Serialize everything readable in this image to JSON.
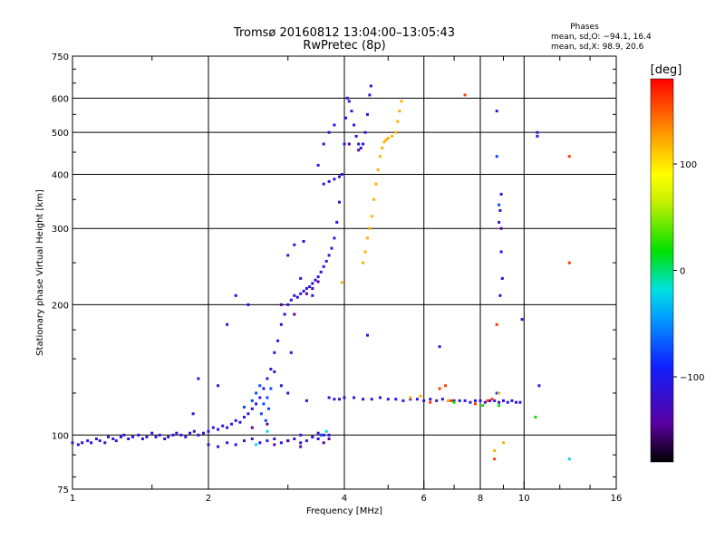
{
  "chart_data": {
    "type": "scatter",
    "title": "Tromsø 20160812 13:04:00–13:05:43",
    "subtitle": "RwPretec (8p)",
    "xlabel": "Frequency [MHz]",
    "ylabel": "Stationary phase Virtual Height [km]",
    "x_scale": "log",
    "y_scale": "log",
    "xlim": [
      1,
      16
    ],
    "ylim": [
      75,
      750
    ],
    "x_ticks": [
      1,
      2,
      4,
      6,
      8,
      10,
      16
    ],
    "x_tick_labels": [
      "1",
      "2",
      "4",
      "6",
      "8",
      "10",
      "16"
    ],
    "y_ticks": [
      75,
      100,
      200,
      300,
      400,
      500,
      600,
      750
    ],
    "y_tick_labels": [
      "75",
      "100",
      "200",
      "300",
      "400",
      "500",
      "600",
      "750"
    ],
    "grid": true,
    "stats": {
      "heading": "Phases",
      "line_o": "mean, sd,O: −94.1, 16.4",
      "line_x": "mean, sd,X:  98.9, 20.6"
    },
    "colorbar": {
      "label": "[deg]",
      "min": -180,
      "max": 180,
      "ticks": [
        100,
        0,
        -100
      ],
      "tick_labels": [
        "100",
        "0",
        "−100"
      ]
    },
    "series": [
      {
        "color_value": -110,
        "points": [
          [
            1.0,
            96
          ],
          [
            1.03,
            95
          ],
          [
            1.05,
            96
          ],
          [
            1.08,
            97
          ],
          [
            1.1,
            96
          ],
          [
            1.13,
            98
          ],
          [
            1.15,
            97
          ],
          [
            1.18,
            96
          ],
          [
            1.2,
            99
          ],
          [
            1.23,
            98
          ],
          [
            1.25,
            97
          ],
          [
            1.28,
            99
          ],
          [
            1.3,
            100
          ],
          [
            1.33,
            98
          ],
          [
            1.36,
            99
          ],
          [
            1.4,
            100
          ],
          [
            1.43,
            98
          ],
          [
            1.46,
            99
          ],
          [
            1.5,
            101
          ],
          [
            1.53,
            99
          ],
          [
            1.56,
            100
          ],
          [
            1.6,
            98
          ],
          [
            1.63,
            99
          ],
          [
            1.67,
            100
          ],
          [
            1.7,
            101
          ],
          [
            1.74,
            100
          ],
          [
            1.78,
            99
          ],
          [
            1.82,
            101
          ],
          [
            1.86,
            102
          ],
          [
            1.9,
            100
          ],
          [
            1.95,
            101
          ],
          [
            2.0,
            102
          ],
          [
            2.05,
            104
          ],
          [
            2.1,
            103
          ],
          [
            2.15,
            105
          ],
          [
            2.2,
            104
          ],
          [
            2.25,
            106
          ],
          [
            2.3,
            108
          ],
          [
            2.35,
            107
          ],
          [
            2.4,
            110
          ],
          [
            2.45,
            112
          ],
          [
            2.5,
            115
          ],
          [
            2.55,
            118
          ],
          [
            2.6,
            122
          ],
          [
            2.65,
            128
          ],
          [
            2.7,
            135
          ],
          [
            2.75,
            142
          ],
          [
            2.8,
            155
          ],
          [
            2.85,
            165
          ],
          [
            2.9,
            180
          ],
          [
            2.95,
            190
          ],
          [
            3.0,
            200
          ],
          [
            3.05,
            205
          ],
          [
            3.1,
            210
          ],
          [
            3.15,
            208
          ],
          [
            3.2,
            212
          ],
          [
            3.25,
            215
          ],
          [
            3.3,
            218
          ],
          [
            3.35,
            220
          ],
          [
            3.4,
            224
          ],
          [
            3.45,
            228
          ],
          [
            3.5,
            232
          ],
          [
            3.55,
            238
          ],
          [
            3.6,
            245
          ],
          [
            3.65,
            252
          ],
          [
            3.7,
            260
          ],
          [
            3.75,
            270
          ],
          [
            3.8,
            285
          ],
          [
            3.85,
            310
          ],
          [
            3.9,
            345
          ],
          [
            3.95,
            400
          ],
          [
            4.0,
            470
          ],
          [
            4.03,
            540
          ],
          [
            4.06,
            600
          ],
          [
            4.1,
            590
          ],
          [
            4.15,
            560
          ],
          [
            4.2,
            520
          ],
          [
            4.25,
            490
          ],
          [
            4.3,
            470
          ],
          [
            4.35,
            460
          ],
          [
            4.4,
            470
          ],
          [
            4.45,
            500
          ],
          [
            4.5,
            550
          ],
          [
            4.55,
            610
          ],
          [
            4.58,
            640
          ],
          [
            2.0,
            95
          ],
          [
            2.1,
            94
          ],
          [
            2.2,
            96
          ],
          [
            2.3,
            95
          ],
          [
            2.4,
            97
          ],
          [
            2.5,
            98
          ],
          [
            2.6,
            96
          ],
          [
            2.7,
            97
          ],
          [
            2.8,
            98
          ],
          [
            2.9,
            96
          ],
          [
            3.0,
            97
          ],
          [
            3.1,
            98
          ],
          [
            3.2,
            96
          ],
          [
            3.3,
            97
          ],
          [
            3.4,
            99
          ],
          [
            3.5,
            98
          ],
          [
            3.6,
            100
          ],
          [
            3.4,
            210
          ],
          [
            3.2,
            230
          ],
          [
            3.0,
            260
          ],
          [
            3.1,
            275
          ],
          [
            3.25,
            280
          ],
          [
            3.5,
            420
          ],
          [
            3.6,
            470
          ],
          [
            3.7,
            500
          ],
          [
            3.8,
            520
          ],
          [
            3.6,
            380
          ],
          [
            3.7,
            385
          ],
          [
            3.8,
            390
          ],
          [
            3.9,
            395
          ],
          [
            2.8,
            140
          ],
          [
            2.9,
            130
          ],
          [
            3.0,
            125
          ],
          [
            3.3,
            120
          ],
          [
            3.7,
            122
          ],
          [
            3.8,
            121
          ],
          [
            3.9,
            121
          ],
          [
            4.0,
            122
          ],
          [
            4.2,
            122
          ],
          [
            4.4,
            121
          ],
          [
            4.6,
            121
          ],
          [
            4.8,
            122
          ],
          [
            5.0,
            121
          ],
          [
            5.2,
            121
          ],
          [
            5.4,
            120
          ],
          [
            5.6,
            121
          ],
          [
            5.8,
            121
          ],
          [
            6.0,
            120
          ],
          [
            6.2,
            121
          ],
          [
            6.4,
            120
          ],
          [
            6.6,
            121
          ],
          [
            6.8,
            120
          ],
          [
            7.0,
            120
          ],
          [
            7.2,
            120
          ],
          [
            7.4,
            120
          ],
          [
            7.6,
            119
          ],
          [
            7.8,
            120
          ],
          [
            8.0,
            120
          ],
          [
            8.2,
            119
          ],
          [
            8.4,
            120
          ],
          [
            8.6,
            120
          ],
          [
            8.8,
            119
          ],
          [
            9.0,
            120
          ],
          [
            9.2,
            119
          ],
          [
            9.4,
            120
          ],
          [
            9.6,
            119
          ],
          [
            9.8,
            119
          ],
          [
            8.7,
            560
          ],
          [
            8.9,
            360
          ],
          [
            8.85,
            330
          ],
          [
            8.8,
            310
          ],
          [
            8.9,
            265
          ],
          [
            8.95,
            230
          ],
          [
            8.85,
            210
          ],
          [
            9.9,
            185
          ],
          [
            10.7,
            500
          ],
          [
            10.7,
            490
          ],
          [
            3.2,
            100
          ],
          [
            3.4,
            99
          ],
          [
            3.5,
            101
          ],
          [
            3.7,
            100
          ],
          [
            2.2,
            180
          ],
          [
            1.9,
            135
          ],
          [
            4.5,
            170
          ],
          [
            6.5,
            160
          ],
          [
            10.8,
            130
          ],
          [
            2.3,
            210
          ],
          [
            2.1,
            130
          ],
          [
            1.85,
            112
          ],
          [
            2.45,
            200
          ],
          [
            3.05,
            155
          ]
        ]
      },
      {
        "color_value": -75,
        "points": [
          [
            2.5,
            120
          ],
          [
            2.55,
            125
          ],
          [
            2.6,
            130
          ],
          [
            2.65,
            118
          ],
          [
            2.7,
            122
          ],
          [
            2.75,
            128
          ],
          [
            2.62,
            112
          ],
          [
            2.68,
            108
          ],
          [
            2.72,
            115
          ],
          [
            8.7,
            440
          ],
          [
            8.8,
            340
          ],
          [
            8.7,
            125
          ],
          [
            3.55,
            100
          ],
          [
            2.4,
            116
          ]
        ]
      },
      {
        "color_value": -145,
        "points": [
          [
            2.8,
            95
          ],
          [
            3.0,
            97
          ],
          [
            3.2,
            94
          ],
          [
            3.3,
            212
          ],
          [
            3.4,
            218
          ],
          [
            3.5,
            226
          ],
          [
            2.9,
            200
          ],
          [
            3.1,
            190
          ],
          [
            3.6,
            96
          ],
          [
            3.7,
            98
          ],
          [
            2.5,
            104
          ],
          [
            2.7,
            106
          ],
          [
            4.1,
            470
          ],
          [
            4.3,
            455
          ],
          [
            8.9,
            300
          ]
        ]
      },
      {
        "color_value": 120,
        "points": [
          [
            4.4,
            250
          ],
          [
            4.45,
            265
          ],
          [
            4.5,
            285
          ],
          [
            4.55,
            300
          ],
          [
            4.6,
            320
          ],
          [
            4.65,
            350
          ],
          [
            4.7,
            380
          ],
          [
            4.75,
            410
          ],
          [
            4.8,
            440
          ],
          [
            4.85,
            460
          ],
          [
            4.9,
            475
          ],
          [
            4.95,
            480
          ],
          [
            5.0,
            485
          ],
          [
            5.1,
            490
          ],
          [
            5.2,
            500
          ],
          [
            5.25,
            530
          ],
          [
            5.3,
            560
          ],
          [
            5.35,
            590
          ],
          [
            3.95,
            225
          ],
          [
            6.8,
            120
          ],
          [
            5.6,
            122
          ],
          [
            5.9,
            123
          ],
          [
            8.6,
            92
          ],
          [
            9.0,
            96
          ],
          [
            8.8,
            125
          ]
        ]
      },
      {
        "color_value": 160,
        "points": [
          [
            7.4,
            610
          ],
          [
            12.6,
            440
          ],
          [
            12.6,
            250
          ],
          [
            8.7,
            180
          ],
          [
            6.9,
            120
          ],
          [
            6.7,
            130
          ],
          [
            6.5,
            128
          ],
          [
            7.8,
            118
          ],
          [
            8.3,
            120
          ],
          [
            8.6,
            88
          ],
          [
            6.2,
            119
          ],
          [
            8.5,
            121
          ]
        ]
      },
      {
        "color_value": 20,
        "points": [
          [
            10.6,
            110
          ],
          [
            8.8,
            117
          ],
          [
            7.0,
            119
          ],
          [
            8.1,
            117
          ]
        ]
      },
      {
        "color_value": -20,
        "points": [
          [
            12.6,
            88
          ],
          [
            2.55,
            95
          ],
          [
            2.7,
            102
          ],
          [
            3.65,
            102
          ]
        ]
      }
    ]
  }
}
